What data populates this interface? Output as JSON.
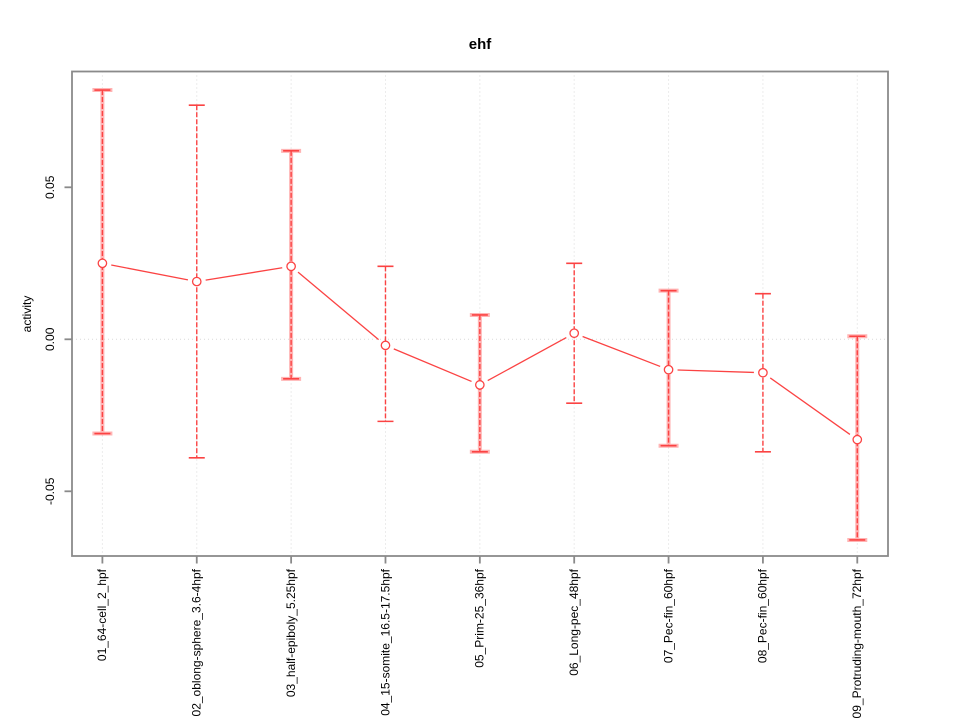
{
  "chart_data": {
    "type": "line",
    "title": "ehf",
    "xlabel": "",
    "ylabel": "activity",
    "legend": "none",
    "grid": "dotted vertical gridline at each category; dotted horizontal line at y=0",
    "categories": [
      "01_64-cell_2_hpf",
      "02_oblong-sphere_3.6-4hpf",
      "03_half-epiboly_5.25hpf",
      "04_15-somite_16.5-17.5hpf",
      "05_Prim-25_36hpf",
      "06_Long-pec_48hpf",
      "07_Pec-fin_60hpf",
      "08_Pec-fin_60hpf",
      "09_Protruding-mouth_72hpf"
    ],
    "series": [
      {
        "name": "activity",
        "values": [
          0.025,
          0.019,
          0.024,
          -0.002,
          -0.015,
          0.002,
          -0.01,
          -0.011,
          -0.033
        ],
        "error_upper": [
          0.082,
          0.077,
          0.062,
          0.024,
          0.008,
          0.025,
          0.016,
          0.015,
          0.001
        ],
        "error_lower": [
          -0.031,
          -0.039,
          -0.013,
          -0.027,
          -0.037,
          -0.021,
          -0.035,
          -0.037,
          -0.066
        ]
      }
    ],
    "yticks": [
      0.05,
      0.0,
      -0.05
    ],
    "ytick_labels": [
      "0.05",
      "0.00",
      "-0.05"
    ],
    "ylim": [
      -0.0713,
      0.0881
    ],
    "colors": {
      "series_red": "#fb4343",
      "series_soft_red": "#ffb4b4",
      "axis_box_gray": "#8a8a8a",
      "grid_gray": "#d9d9d9",
      "text_black": "#000000",
      "background": "#ffffff"
    }
  }
}
